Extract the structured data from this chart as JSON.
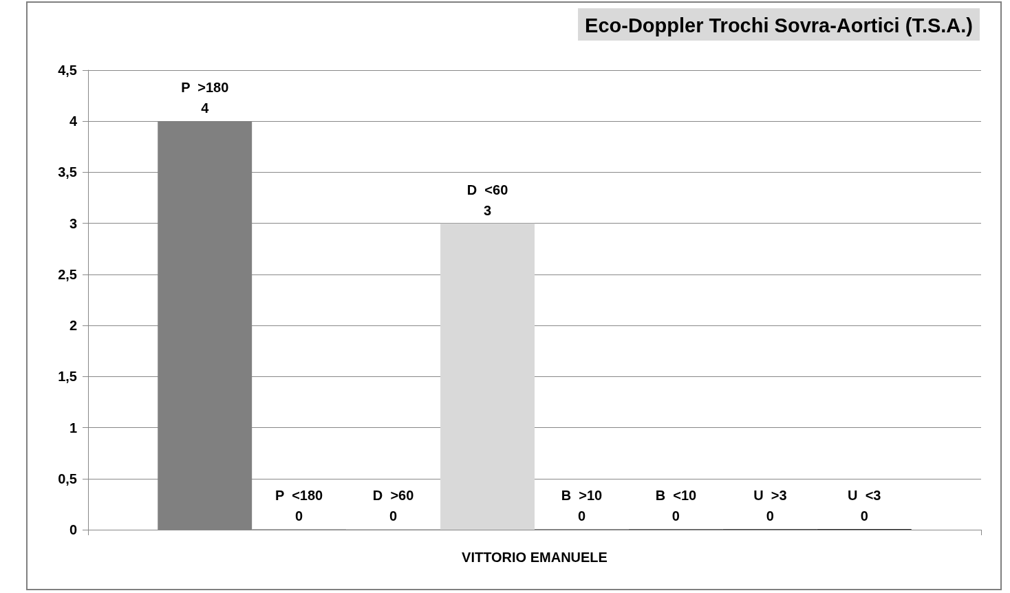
{
  "chart_data": {
    "type": "bar",
    "title": "Eco-Doppler Trochi Sovra-Aortici (T.S.A.)",
    "categories": [
      "VITTORIO EMANUELE"
    ],
    "series": [
      {
        "name": "P  >180",
        "color": "#808080",
        "values": [
          4
        ]
      },
      {
        "name": "P  <180",
        "color": "#a6a6a6",
        "values": [
          0
        ]
      },
      {
        "name": "D  >60",
        "color": "#bfbfbf",
        "values": [
          0
        ]
      },
      {
        "name": "D  <60",
        "color": "#d9d9d9",
        "values": [
          3
        ]
      },
      {
        "name": "B  >10",
        "color": "#7f7f7f",
        "values": [
          0
        ]
      },
      {
        "name": "B  <10",
        "color": "#595959",
        "values": [
          0
        ]
      },
      {
        "name": "U  >3",
        "color": "#404040",
        "values": [
          0
        ]
      },
      {
        "name": "U  <3",
        "color": "#262626",
        "values": [
          0
        ]
      }
    ],
    "ylim": [
      0,
      4.5
    ],
    "yticks": [
      0,
      {
        "value": 0.5,
        "label": "0,5"
      },
      1,
      {
        "value": 1.5,
        "label": "1,5"
      },
      2,
      {
        "value": 2.5,
        "label": "2,5"
      },
      3,
      {
        "value": 3.5,
        "label": "3,5"
      },
      4,
      {
        "value": 4.5,
        "label": "4,5"
      }
    ],
    "grid": "y",
    "legend": false,
    "data_labels": true
  }
}
